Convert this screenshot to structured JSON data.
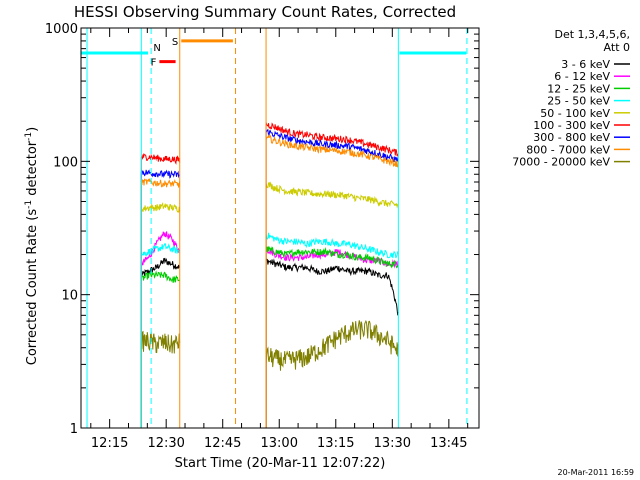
{
  "chart_data": {
    "type": "line",
    "title": "HESSI Observing Summary Count Rates, Corrected",
    "xlabel": "Start Time (20-Mar-11 12:07:22)",
    "ylabel": "Corrected Count Rate (s",
    "ylabel_sup1": "-1",
    "ylabel_mid": " detector",
    "ylabel_sup2": "-1",
    "ylabel_end": ")",
    "yscale": "log",
    "ylim": [
      1,
      1000
    ],
    "xlim_min": [
      727.4,
      833.0
    ],
    "x_ticks": [
      {
        "min": 735,
        "label": "12:15"
      },
      {
        "min": 750,
        "label": "12:30"
      },
      {
        "min": 765,
        "label": "12:45"
      },
      {
        "min": 780,
        "label": "13:00"
      },
      {
        "min": 795,
        "label": "13:15"
      },
      {
        "min": 810,
        "label": "13:30"
      },
      {
        "min": 825,
        "label": "13:45"
      }
    ],
    "y_ticks": [
      {
        "v": 1,
        "label": "1"
      },
      {
        "v": 10,
        "label": "10"
      },
      {
        "v": 100,
        "label": "100"
      },
      {
        "v": 1000,
        "label": "1000"
      }
    ],
    "legend_header": [
      "Det 1,3,4,5,6,",
      "Att 0"
    ],
    "legend_position": "right",
    "segments": [
      [
        743.4,
        753.6
      ],
      [
        776.5,
        811.6
      ]
    ],
    "series": [
      {
        "name": "3 - 6 keV",
        "color": "#000000",
        "seg1": [
          14,
          15,
          16,
          18,
          17,
          16
        ],
        "seg2": [
          18,
          17,
          16,
          16,
          16,
          15,
          15,
          16,
          15,
          15,
          15,
          14,
          14,
          7
        ]
      },
      {
        "name": "6 - 12 keV",
        "color": "#ff00ff",
        "seg1": [
          17,
          19,
          24,
          29,
          26,
          21
        ],
        "seg2": [
          22,
          20,
          19,
          19,
          19,
          20,
          20,
          21,
          20,
          19,
          18,
          18,
          17,
          17
        ]
      },
      {
        "name": "12 - 25 keV",
        "color": "#00cc00",
        "seg1": [
          13,
          14,
          14,
          14,
          13,
          13
        ],
        "seg2": [
          22,
          21,
          20,
          21,
          21,
          21,
          21,
          20,
          20,
          19,
          19,
          18,
          17,
          17
        ]
      },
      {
        "name": "25 - 50 keV",
        "color": "#00ffff",
        "seg1": [
          20,
          21,
          22,
          23,
          22,
          21
        ],
        "seg2": [
          28,
          26,
          25,
          25,
          24,
          25,
          25,
          24,
          24,
          23,
          22,
          21,
          20,
          20
        ]
      },
      {
        "name": "50 - 100 keV",
        "color": "#cccc00",
        "seg1": [
          44,
          45,
          45,
          46,
          45,
          44
        ],
        "seg2": [
          68,
          63,
          60,
          59,
          58,
          57,
          57,
          56,
          55,
          53,
          52,
          50,
          48,
          47
        ]
      },
      {
        "name": "100 - 300 keV",
        "color": "#ff0000",
        "seg1": [
          108,
          108,
          106,
          104,
          104,
          102
        ],
        "seg2": [
          190,
          180,
          168,
          160,
          158,
          152,
          150,
          148,
          146,
          140,
          134,
          128,
          122,
          115
        ]
      },
      {
        "name": "300 - 800 keV",
        "color": "#0000ff",
        "seg1": [
          83,
          82,
          81,
          80,
          80,
          79
        ],
        "seg2": [
          168,
          158,
          150,
          144,
          140,
          136,
          134,
          132,
          130,
          125,
          120,
          114,
          108,
          102
        ]
      },
      {
        "name": "800 - 7000 keV",
        "color": "#ff8c00",
        "seg1": [
          70,
          70,
          69,
          68,
          68,
          67
        ],
        "seg2": [
          150,
          142,
          135,
          130,
          127,
          124,
          122,
          120,
          118,
          114,
          110,
          105,
          100,
          95
        ]
      },
      {
        "name": "7000 - 20000 keV",
        "color": "#808000",
        "seg1": [
          4.5,
          4.5,
          4.3,
          4.4,
          4.2,
          4.4
        ],
        "seg2": [
          3.5,
          3.3,
          3.2,
          3.3,
          3.4,
          3.8,
          4.2,
          4.8,
          5.2,
          5.5,
          5.5,
          5.0,
          4.5,
          3.8
        ]
      }
    ],
    "markers": [
      {
        "min": 729.0,
        "color": "#00ffff",
        "style": "solid"
      },
      {
        "min": 743.4,
        "color": "#00ffff",
        "style": "solid"
      },
      {
        "min": 746.0,
        "color": "#00ffff",
        "style": "dashed"
      },
      {
        "min": 753.6,
        "color": "#ff8c00",
        "style": "solid"
      },
      {
        "min": 768.4,
        "color": "#ff8c00",
        "style": "dashed"
      },
      {
        "min": 776.5,
        "color": "#ff8c00",
        "style": "solid"
      },
      {
        "min": 811.6,
        "color": "#00ffff",
        "style": "solid"
      },
      {
        "min": 829.8,
        "color": "#00ffff",
        "style": "dashed"
      }
    ],
    "bars": [
      {
        "label": "",
        "color": "#00ffff",
        "start": 727.4,
        "end": 745.2,
        "level": 650
      },
      {
        "label": "F",
        "color": "#ff0000",
        "start": 748.2,
        "end": 752.5,
        "level": 560
      },
      {
        "label": "N",
        "color": "#00ffff",
        "start": 746.6,
        "end": 747.4,
        "level": 650,
        "label_only": true
      },
      {
        "label": "S",
        "color": "#ff8c00",
        "start": 754.0,
        "end": 767.7,
        "level": 800
      },
      {
        "label": "",
        "color": "#00ffff",
        "start": 811.9,
        "end": 829.6,
        "level": 650
      }
    ]
  },
  "timestamp": "20-Mar-2011 16:59"
}
